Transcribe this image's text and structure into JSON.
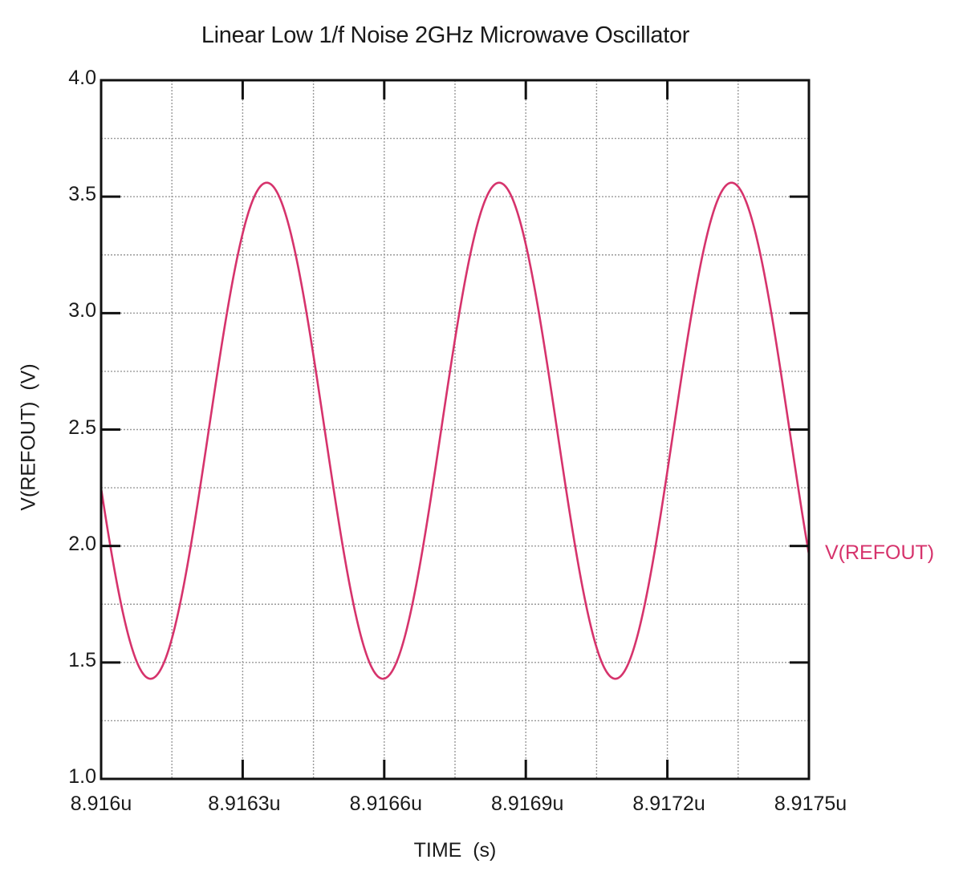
{
  "chart_data": {
    "type": "line",
    "title": "Linear Low 1/f Noise 2GHz Microwave Oscillator",
    "xlabel": "TIME  (s)",
    "ylabel": "V(REFOUT)  (V)",
    "x_tick_labels": [
      "8.916u",
      "8.9163u",
      "8.9166u",
      "8.9169u",
      "8.9172u",
      "8.9175u"
    ],
    "x_ticks_us": [
      8.916,
      8.9163,
      8.9166,
      8.9169,
      8.9172,
      8.9175
    ],
    "y_tick_labels": [
      "4.0",
      "3.5",
      "3.0",
      "2.5",
      "2.0",
      "1.5",
      "1.0"
    ],
    "y_ticks": [
      4.0,
      3.5,
      3.0,
      2.5,
      2.0,
      1.5,
      1.0
    ],
    "xlim_us": [
      8.916,
      8.9175
    ],
    "ylim": [
      1.0,
      4.0
    ],
    "grid": true,
    "grid_style": "dotted, minor lines at half-intervals",
    "legend": {
      "position": "right-inline",
      "entries": [
        "V(REFOUT)"
      ]
    },
    "series": [
      {
        "name": "V(REFOUT)",
        "color": "#d6336c",
        "description": "sinusoid ~2.02 GHz, peak ~3.56 V, trough ~1.43 V, mean ~2.49 V",
        "peaks": [
          {
            "t_us": 8.91635,
            "v": 3.56
          },
          {
            "t_us": 8.91684,
            "v": 3.56
          },
          {
            "t_us": 8.91734,
            "v": 3.56
          }
        ],
        "troughs": [
          {
            "t_us": 8.9161,
            "v": 1.43
          },
          {
            "t_us": 8.91659,
            "v": 1.43
          },
          {
            "t_us": 8.91709,
            "v": 1.43
          }
        ],
        "x_us": [
          8.916,
          8.91605,
          8.9161,
          8.91615,
          8.9162,
          8.91625,
          8.9163,
          8.91635,
          8.9164,
          8.91645,
          8.9165,
          8.91655,
          8.9166,
          8.91665,
          8.9167,
          8.91675,
          8.9168,
          8.91685,
          8.9169,
          8.91695,
          8.917,
          8.91705,
          8.9171,
          8.91715,
          8.9172,
          8.91725,
          8.9173,
          8.91735,
          8.9174,
          8.91745,
          8.9175
        ],
        "values": [
          2.2,
          1.61,
          1.43,
          1.78,
          2.4,
          3.02,
          3.46,
          3.55,
          3.23,
          2.64,
          2.0,
          1.54,
          1.44,
          1.8,
          2.45,
          3.06,
          3.47,
          3.55,
          3.2,
          2.6,
          1.96,
          1.51,
          1.45,
          1.86,
          2.49,
          3.1,
          3.5,
          3.55,
          3.16,
          2.55,
          1.93
        ]
      }
    ],
    "model": {
      "offset": 2.495,
      "amplitude": 1.065,
      "period_ns": 0.4925,
      "peak_t_us": 8.916351
    }
  },
  "colors": {
    "trace": "#d6336c",
    "axis": "#111111",
    "grid": "#9a9a9a"
  }
}
